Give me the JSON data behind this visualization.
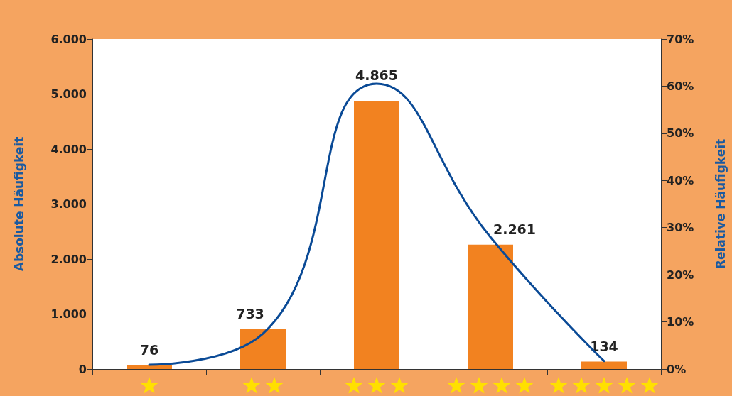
{
  "chart_data": {
    "type": "bar",
    "ylabel": "Absolute Häufigkeit",
    "y2label": "Relative Häufigkeit",
    "categories": [
      null,
      null,
      null,
      null,
      null
    ],
    "series": [
      {
        "color": "#f28220",
        "values": [
          76,
          733,
          4865,
          2261,
          134
        ],
        "value_labels": [
          "76",
          "733",
          "4.865",
          "2.261",
          "134"
        ]
      },
      {
        "type": "line",
        "axis": "y2",
        "color": "#0a4a96",
        "values": [
          0.9,
          7.5,
          60.5,
          28.0,
          1.7
        ],
        "marker": "none"
      }
    ],
    "ylim": [
      0,
      6000
    ],
    "yticks": [
      {
        "value": 0,
        "label": "0"
      },
      {
        "value": 1000,
        "label": "1.000"
      },
      {
        "value": 2000,
        "label": "2.000"
      },
      {
        "value": 3000,
        "label": "3.000"
      },
      {
        "value": 4000,
        "label": "4.000"
      },
      {
        "value": 5000,
        "label": "5.000"
      },
      {
        "value": 6000,
        "label": "6.000"
      }
    ],
    "y2lim": [
      0,
      70
    ],
    "y2ticks": [
      {
        "value": 0,
        "label": "0%"
      },
      {
        "value": 10,
        "label": "10%"
      },
      {
        "value": 20,
        "label": "20%"
      },
      {
        "value": 30,
        "label": "30%"
      },
      {
        "value": 40,
        "label": "40%"
      },
      {
        "value": 50,
        "label": "50%"
      },
      {
        "value": 60,
        "label": "60%"
      },
      {
        "value": 70,
        "label": "70%"
      }
    ],
    "grid": false
  }
}
